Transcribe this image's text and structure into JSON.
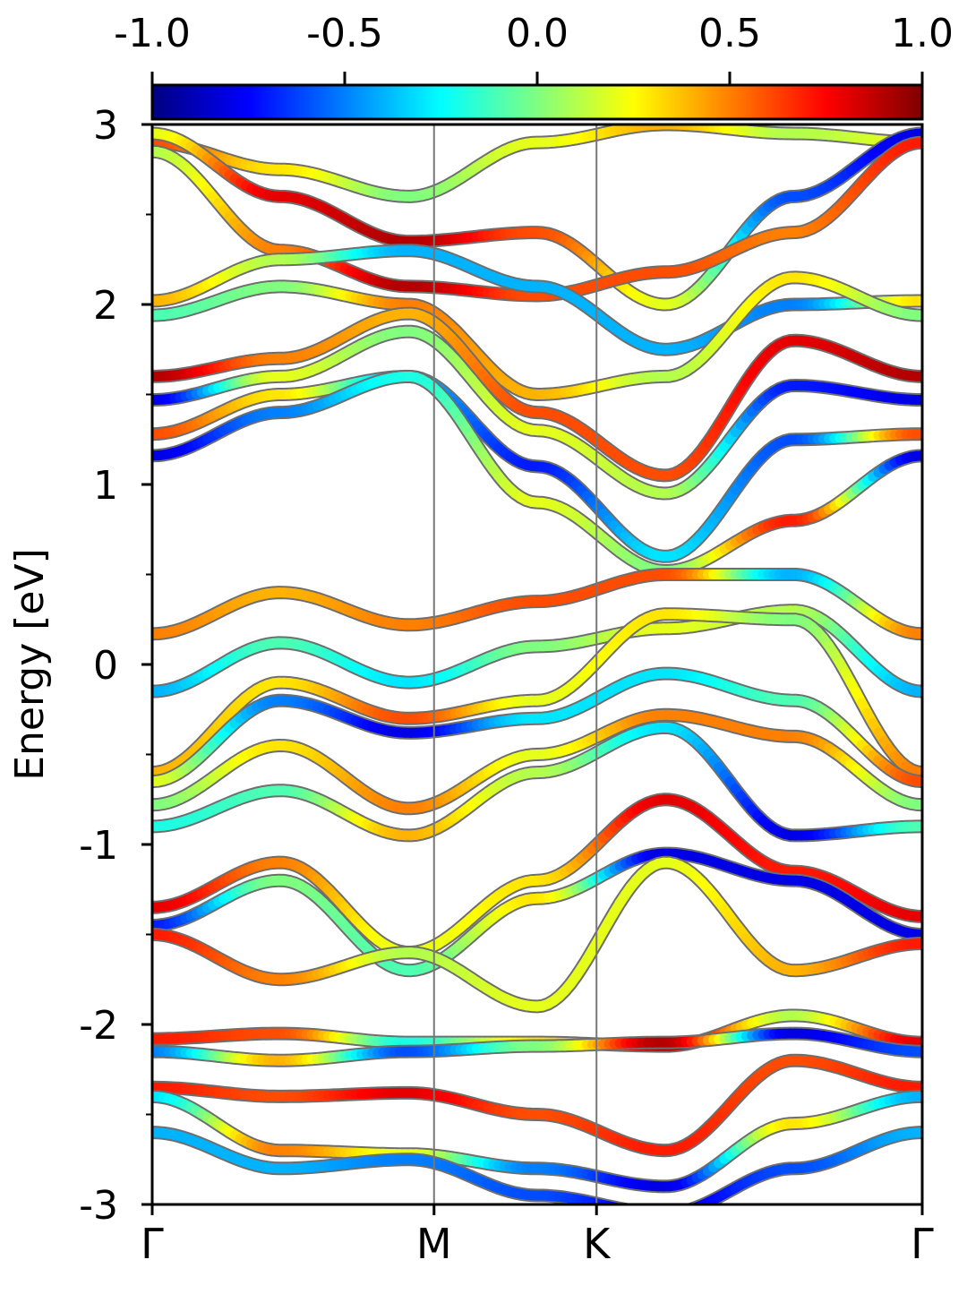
{
  "chart_data": {
    "type": "line",
    "title": "",
    "ylabel": "Energy [eV]",
    "xlabel": "",
    "ylim": [
      -3,
      3
    ],
    "y_ticks": [
      3,
      2,
      1,
      0,
      -1,
      -2,
      -3
    ],
    "y_tick_labels": [
      "3",
      "2",
      "1",
      "0",
      "-1",
      "-2",
      "-3"
    ],
    "k_path": {
      "labels": [
        "Γ",
        "M",
        "K",
        "Γ"
      ],
      "positions": [
        0,
        0.366,
        0.577,
        1
      ]
    },
    "colorbar": {
      "colormap": "jet",
      "range": [
        -1.0,
        1.0
      ],
      "ticks": [
        -1.0,
        -0.5,
        0.0,
        0.5,
        1.0
      ],
      "tick_labels": [
        "-1.0",
        "-0.5",
        "0.0",
        "0.5",
        "1.0"
      ]
    },
    "grid": false,
    "legend": "none",
    "series": [
      {
        "e": [
          2.9,
          2.75,
          2.6,
          2.9,
          3.0,
          2.95,
          2.9
        ],
        "w": [
          0.6,
          0.3,
          0.0,
          0.2,
          0.4,
          0.1,
          0.2
        ]
      },
      {
        "e": [
          2.95,
          2.6,
          2.35,
          2.4,
          2.0,
          2.6,
          2.95
        ],
        "w": [
          0.2,
          0.8,
          0.9,
          0.6,
          0.2,
          -0.6,
          -0.8
        ]
      },
      {
        "e": [
          2.85,
          2.3,
          2.1,
          2.05,
          2.18,
          2.4,
          2.9
        ],
        "w": [
          0.1,
          0.5,
          0.9,
          0.6,
          0.6,
          0.5,
          0.7
        ]
      },
      {
        "e": [
          2.02,
          2.25,
          2.3,
          2.1,
          1.75,
          2.0,
          2.02
        ],
        "w": [
          0.4,
          0.1,
          -0.4,
          -0.4,
          -0.4,
          -0.5,
          0.3
        ]
      },
      {
        "e": [
          1.94,
          2.1,
          2.0,
          1.5,
          1.6,
          2.15,
          1.94
        ],
        "w": [
          -0.1,
          0.0,
          0.5,
          0.4,
          0.1,
          0.3,
          0.0
        ]
      },
      {
        "e": [
          1.6,
          1.7,
          1.95,
          1.4,
          1.05,
          1.8,
          1.6
        ],
        "w": [
          0.9,
          0.5,
          0.4,
          0.6,
          0.6,
          0.8,
          0.9
        ]
      },
      {
        "e": [
          1.47,
          1.6,
          1.85,
          1.3,
          0.95,
          1.55,
          1.47
        ],
        "w": [
          -0.8,
          0.2,
          0.0,
          0.2,
          0.1,
          -0.7,
          -0.8
        ]
      },
      {
        "e": [
          1.28,
          1.5,
          1.6,
          1.1,
          0.6,
          1.25,
          1.28
        ],
        "w": [
          0.6,
          0.3,
          -0.4,
          -0.7,
          -0.3,
          -0.6,
          0.6
        ]
      },
      {
        "e": [
          1.16,
          1.4,
          1.6,
          0.9,
          0.52,
          0.8,
          1.16
        ],
        "w": [
          -0.8,
          -0.5,
          -0.2,
          0.2,
          0.0,
          0.7,
          -0.8
        ]
      },
      {
        "e": [
          0.17,
          0.4,
          0.22,
          0.35,
          0.5,
          0.5,
          0.17
        ],
        "w": [
          0.5,
          0.4,
          0.5,
          0.6,
          0.6,
          -0.4,
          0.5
        ]
      },
      {
        "e": [
          -0.15,
          0.12,
          -0.1,
          0.1,
          0.2,
          0.3,
          -0.15
        ],
        "w": [
          -0.4,
          -0.1,
          -0.3,
          0.0,
          0.2,
          0.1,
          -0.4
        ]
      },
      {
        "e": [
          -0.6,
          -0.1,
          -0.3,
          -0.2,
          0.28,
          0.25,
          -0.6
        ],
        "w": [
          0.4,
          0.3,
          0.6,
          0.2,
          0.3,
          0.0,
          0.5
        ]
      },
      {
        "e": [
          -0.65,
          -0.2,
          -0.38,
          -0.3,
          -0.05,
          -0.2,
          -0.65
        ],
        "w": [
          0.2,
          -0.5,
          -0.8,
          -0.3,
          -0.3,
          -0.1,
          0.6
        ]
      },
      {
        "e": [
          -0.78,
          -0.45,
          -0.8,
          -0.5,
          -0.28,
          -0.4,
          -0.78
        ],
        "w": [
          0.0,
          0.3,
          0.5,
          0.2,
          0.5,
          0.5,
          0.0
        ]
      },
      {
        "e": [
          -0.9,
          -0.7,
          -0.95,
          -0.6,
          -0.35,
          -0.95,
          -0.9
        ],
        "w": [
          -0.2,
          -0.1,
          0.4,
          0.1,
          -0.3,
          -0.8,
          -0.1
        ]
      },
      {
        "e": [
          -1.35,
          -1.1,
          -1.6,
          -1.2,
          -0.75,
          -1.15,
          -1.4
        ],
        "w": [
          0.8,
          0.5,
          0.2,
          0.3,
          0.8,
          0.7,
          0.8
        ]
      },
      {
        "e": [
          -1.45,
          -1.2,
          -1.7,
          -1.3,
          -1.05,
          -1.2,
          -1.5
        ],
        "w": [
          -0.7,
          0.0,
          -0.1,
          0.3,
          -0.8,
          -0.8,
          -0.8
        ]
      },
      {
        "e": [
          -1.5,
          -1.75,
          -1.6,
          -1.9,
          -1.1,
          -1.7,
          -1.55
        ],
        "w": [
          0.7,
          0.5,
          0.1,
          0.2,
          0.2,
          0.4,
          0.7
        ]
      },
      {
        "e": [
          -2.08,
          -2.05,
          -2.1,
          -2.1,
          -2.12,
          -1.95,
          -2.1
        ],
        "w": [
          0.7,
          0.6,
          -0.2,
          0.3,
          0.9,
          0.1,
          0.8
        ]
      },
      {
        "e": [
          -2.15,
          -2.2,
          -2.15,
          -2.12,
          -2.1,
          -2.05,
          -2.15
        ],
        "w": [
          -0.5,
          0.4,
          -0.6,
          0.0,
          0.9,
          -0.8,
          -0.6
        ]
      },
      {
        "e": [
          -2.35,
          -2.4,
          -2.38,
          -2.5,
          -2.7,
          -2.2,
          -2.35
        ],
        "w": [
          0.7,
          0.6,
          0.8,
          0.6,
          0.7,
          0.6,
          0.7
        ]
      },
      {
        "e": [
          -2.4,
          -2.7,
          -2.72,
          -2.8,
          -2.9,
          -2.55,
          -2.4
        ],
        "w": [
          -0.3,
          0.5,
          0.2,
          -0.5,
          -0.8,
          0.3,
          -0.4
        ]
      },
      {
        "e": [
          -2.6,
          -2.8,
          -2.75,
          -2.95,
          -3.05,
          -2.8,
          -2.6
        ],
        "w": [
          -0.4,
          -0.4,
          -0.5,
          -0.6,
          -0.8,
          -0.6,
          -0.4
        ]
      }
    ]
  }
}
